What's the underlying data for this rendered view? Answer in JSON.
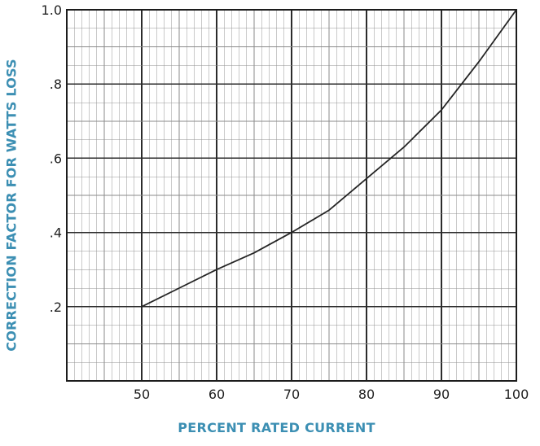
{
  "chart_data": {
    "type": "line",
    "title": "",
    "xlabel": "PERCENT RATED CURRENT",
    "ylabel": "CORRECTION FACTOR FOR WATTS LOSS",
    "x_ticks": [
      "50",
      "60",
      "70",
      "80",
      "90",
      "100"
    ],
    "y_ticks": [
      "1.0",
      ".8",
      ".6",
      ".4",
      ".2"
    ],
    "xlim": [
      40,
      100
    ],
    "ylim": [
      0,
      1.0
    ],
    "grid": true,
    "series": [
      {
        "x": [
          50,
          55,
          60,
          65,
          70,
          75,
          80,
          85,
          90,
          95,
          100
        ],
        "y": [
          0.2,
          0.25,
          0.3,
          0.345,
          0.4,
          0.46,
          0.545,
          0.63,
          0.73,
          0.86,
          1.0
        ]
      }
    ]
  }
}
